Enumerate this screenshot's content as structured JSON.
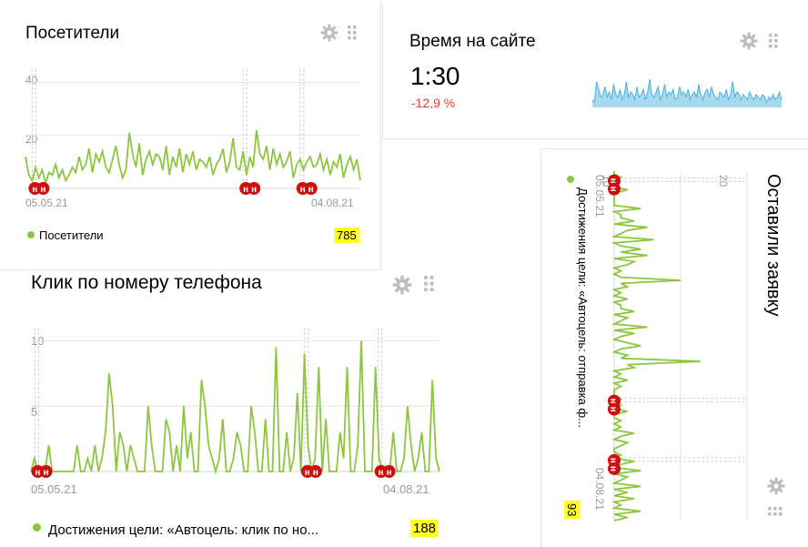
{
  "colors": {
    "line": "#8cc63f",
    "area": "#a6d8ee",
    "areaLine": "#4ab2dc",
    "marker": "#cc1010",
    "negative": "#e53935",
    "highlight": "#ffff22"
  },
  "icons": [
    "gear-icon",
    "drag-handle-icon"
  ],
  "visitors": {
    "title": "Посетители",
    "legend": "Посетители",
    "total": "785",
    "ticks": {
      "y40": "40",
      "y20": "20",
      "xStart": "05.05.21",
      "xEnd": "04.08.21"
    },
    "marker_label": "н"
  },
  "time": {
    "title": "Время на сайте",
    "value": "1:30",
    "delta": "-12,9 %"
  },
  "calls": {
    "title": "Клик по номеру телефона",
    "legend": "Достижения цели: «Автоцель: клик по но...",
    "total": "188",
    "ticks": {
      "y10": "10",
      "y5": "5",
      "xStart": "05.05.21",
      "xEnd": "04.08.21"
    },
    "marker_label": "н"
  },
  "lead": {
    "title": "Оставили заявку",
    "legend": "Достижения цели: «Автоцель: отправка ф...",
    "total": "93",
    "ticks": {
      "y10": "10",
      "y20": "20",
      "xStart": "05.05.21",
      "xEnd": "04.08.21"
    },
    "marker_label": "н"
  },
  "chart_data": [
    {
      "type": "line",
      "title": "Посетители",
      "x_range": [
        "05.05.21",
        "04.08.21"
      ],
      "ylim": [
        0,
        45
      ],
      "series": [
        {
          "name": "Посетители",
          "values": [
            12,
            5,
            3,
            8,
            4,
            7,
            2,
            6,
            5,
            9,
            4,
            7,
            3,
            5,
            8,
            6,
            12,
            7,
            9,
            15,
            6,
            13,
            10,
            14,
            8,
            6,
            11,
            16,
            9,
            4,
            7,
            21,
            13,
            8,
            17,
            5,
            11,
            14,
            9,
            13,
            12,
            7,
            16,
            5,
            12,
            8,
            15,
            6,
            13,
            9,
            14,
            7,
            11,
            10,
            8,
            12,
            5,
            9,
            11,
            15,
            6,
            10,
            19,
            8,
            7,
            14,
            5,
            12,
            8,
            22,
            13,
            11,
            16,
            7,
            15,
            9,
            13,
            8,
            10,
            14,
            4,
            9,
            11,
            7,
            10,
            12,
            8,
            9,
            13,
            7,
            11,
            5,
            10,
            8,
            13,
            4,
            9,
            12,
            7,
            11,
            3
          ]
        }
      ]
    },
    {
      "type": "area",
      "title": "Время на сайте",
      "series": [
        {
          "name": "",
          "values": [
            3,
            2,
            10,
            7,
            4,
            5,
            8,
            4,
            6,
            3,
            9,
            5,
            4,
            7,
            3,
            5,
            10,
            4,
            6,
            5,
            3,
            8,
            4,
            5,
            7,
            3,
            6,
            11,
            5,
            4,
            6,
            8,
            3,
            5,
            9,
            4,
            6,
            5,
            7,
            3,
            4,
            8,
            5,
            6,
            4,
            7,
            3,
            5,
            6,
            4,
            9,
            5,
            3,
            6,
            7,
            4,
            8,
            5,
            4,
            3,
            6,
            5,
            4,
            7,
            3,
            5,
            10,
            4,
            6,
            5,
            3,
            5,
            4,
            3,
            6,
            4,
            3,
            5,
            4,
            3,
            5,
            4,
            2,
            4,
            3,
            5,
            3,
            4,
            6,
            3
          ]
        }
      ]
    },
    {
      "type": "line",
      "title": "Клик по номеру телефона",
      "x_range": [
        "05.05.21",
        "04.08.21"
      ],
      "ylim": [
        0,
        11
      ],
      "series": [
        {
          "name": "Достижения цели: «Автоцель: клик по но...",
          "values": [
            0,
            1,
            0,
            0,
            0,
            2,
            0,
            0,
            0,
            0,
            0,
            0,
            0,
            2,
            0,
            0,
            1,
            0,
            2,
            0,
            1,
            3,
            7.5,
            5,
            0,
            3,
            2,
            0,
            2,
            1,
            0,
            0,
            0,
            5,
            2,
            0,
            0,
            0,
            4,
            3,
            0,
            2,
            0,
            5,
            1,
            3,
            0,
            0,
            7,
            5,
            2,
            1,
            0,
            1,
            4,
            0,
            0,
            1,
            3,
            2,
            0,
            0,
            5,
            3,
            0,
            0,
            4,
            0,
            0,
            9.5,
            0,
            0,
            3,
            0,
            1,
            6,
            0,
            9,
            2,
            0,
            1,
            8,
            0,
            4,
            0,
            0,
            0,
            3,
            1,
            8,
            0,
            0,
            2,
            10,
            0,
            0,
            0,
            8,
            1,
            0,
            0,
            0,
            3,
            0,
            0,
            1,
            5,
            2,
            0,
            1,
            3,
            0,
            0,
            7,
            1,
            0
          ]
        }
      ]
    },
    {
      "type": "line",
      "title": "Оставили заявку",
      "x_range": [
        "05.05.21",
        "04.08.21"
      ],
      "ylim": [
        0,
        20
      ],
      "series": [
        {
          "name": "Достижения цели: «Автоцель: отправка ф...",
          "values": [
            0,
            0,
            1,
            0,
            0,
            0,
            2,
            0,
            0,
            0,
            0,
            0,
            4,
            0,
            1,
            1,
            3,
            0,
            5,
            2,
            1,
            0,
            6,
            0,
            1,
            4,
            1,
            5,
            0,
            3,
            2,
            0,
            1,
            0,
            1,
            10,
            1,
            2,
            0,
            1,
            0,
            2,
            0,
            1,
            1,
            3,
            0,
            2,
            1,
            0,
            5,
            0,
            3,
            1,
            0,
            2,
            4,
            1,
            0,
            2,
            1,
            13,
            2,
            3,
            0,
            1,
            0,
            2,
            0,
            1,
            0,
            0,
            0,
            1,
            0,
            1,
            0,
            2,
            0,
            0,
            1,
            0,
            1,
            0,
            3,
            1,
            0,
            2,
            1,
            0,
            0,
            1,
            0,
            3,
            1,
            0,
            4,
            0,
            2,
            1,
            0,
            4,
            0,
            2,
            0,
            3,
            0,
            1,
            0,
            4,
            0,
            2,
            0
          ]
        }
      ]
    }
  ]
}
